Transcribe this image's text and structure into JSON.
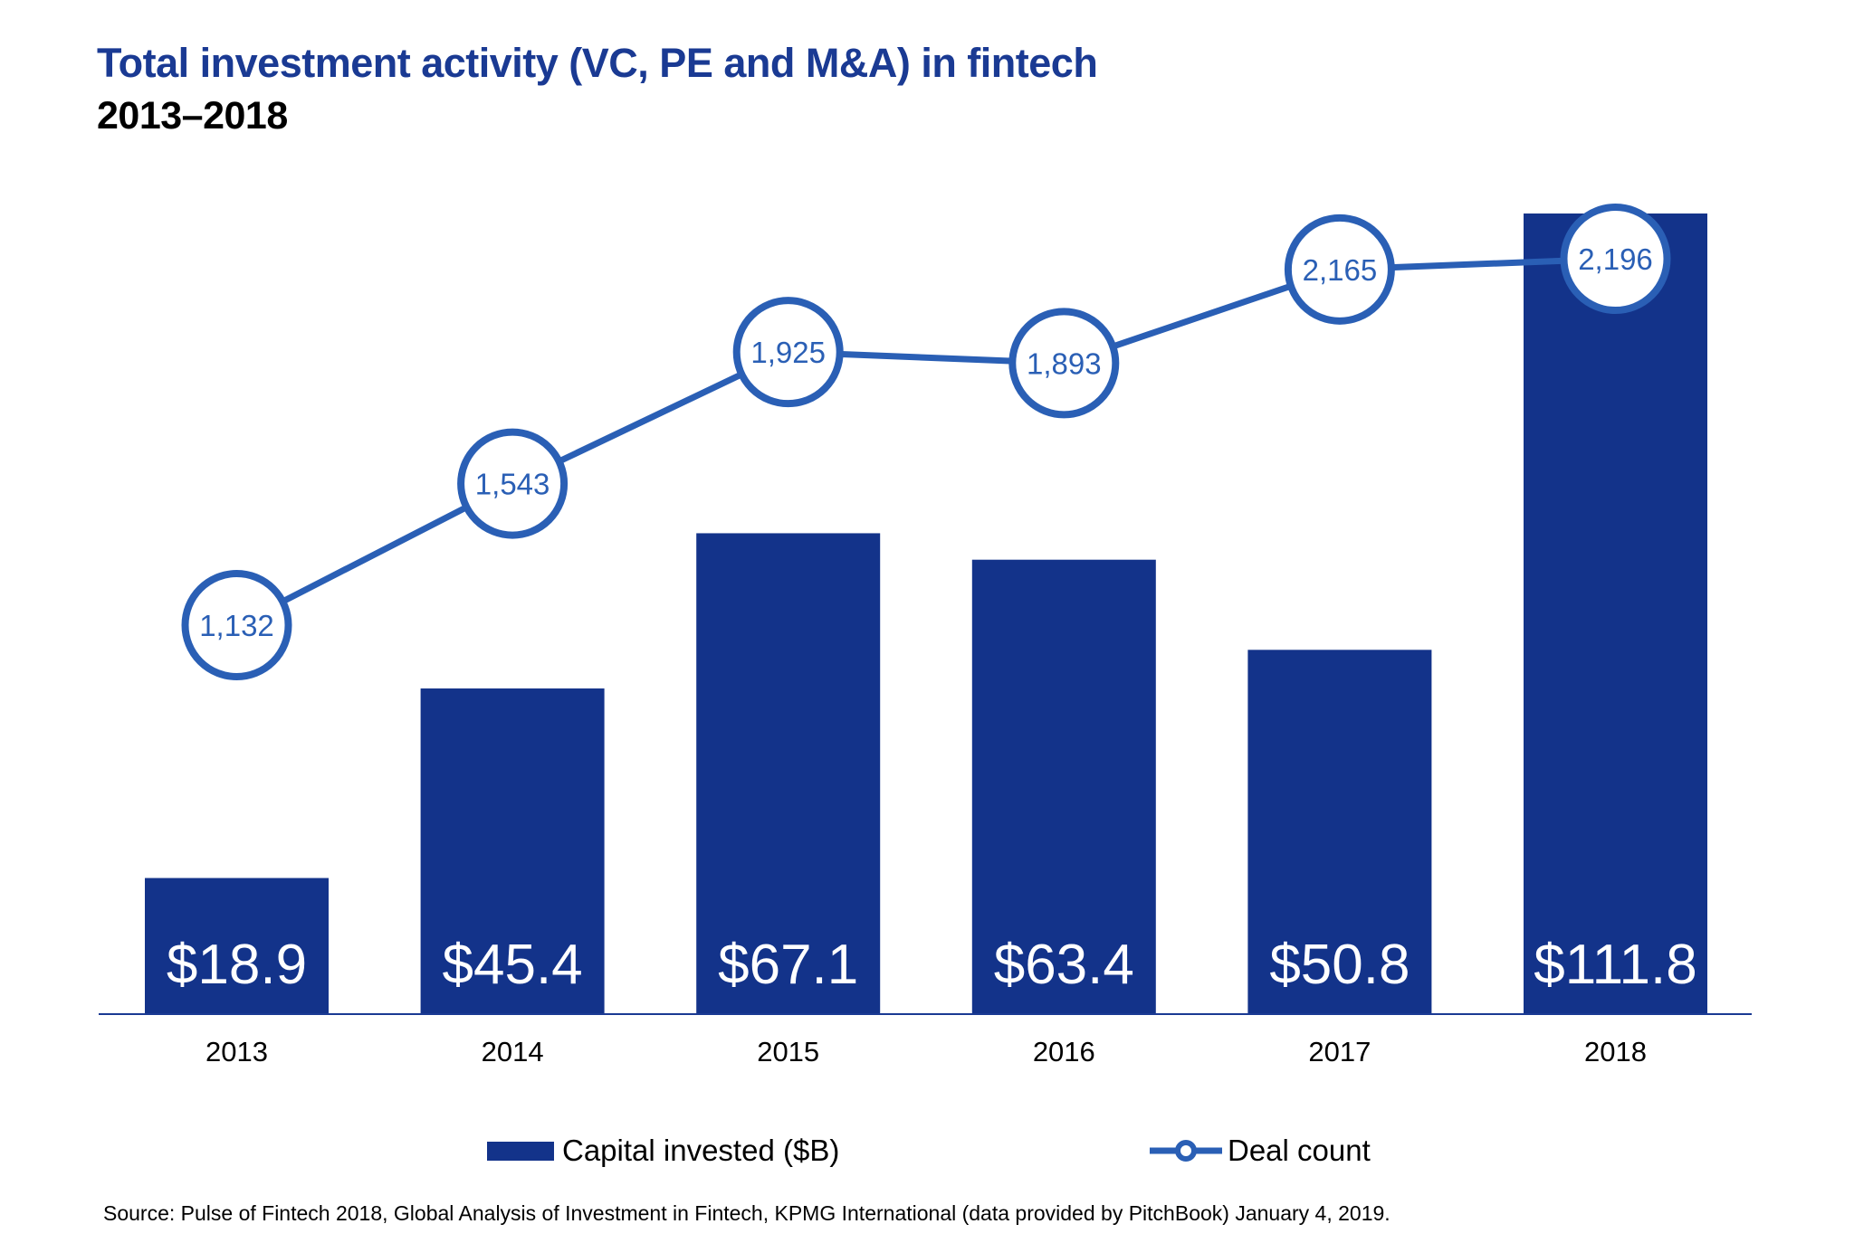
{
  "chart_data": {
    "type": "bar+line",
    "title": "Total investment activity (VC, PE and M&A) in fintech",
    "subtitle": "2013–2018",
    "categories": [
      "2013",
      "2014",
      "2015",
      "2016",
      "2017",
      "2018"
    ],
    "series": [
      {
        "name": "Capital invested ($B)",
        "type": "bar",
        "values": [
          18.9,
          45.4,
          67.1,
          63.4,
          50.8,
          111.8
        ],
        "labels": [
          "$18.9",
          "$45.4",
          "$67.1",
          "$63.4",
          "$50.8",
          "$111.8"
        ],
        "color": "#13338a"
      },
      {
        "name": "Deal count",
        "type": "line",
        "values": [
          1132,
          1543,
          1925,
          1893,
          2165,
          2196
        ],
        "labels": [
          "1,132",
          "1,543",
          "1,925",
          "1,893",
          "2,165",
          "2,196"
        ],
        "color": "#2a5fb5"
      }
    ],
    "grid": false,
    "legend": "bottom",
    "source": "Source: Pulse of Fintech 2018, Global Analysis of Investment in Fintech, KPMG International (data provided by PitchBook) January 4, 2019."
  }
}
